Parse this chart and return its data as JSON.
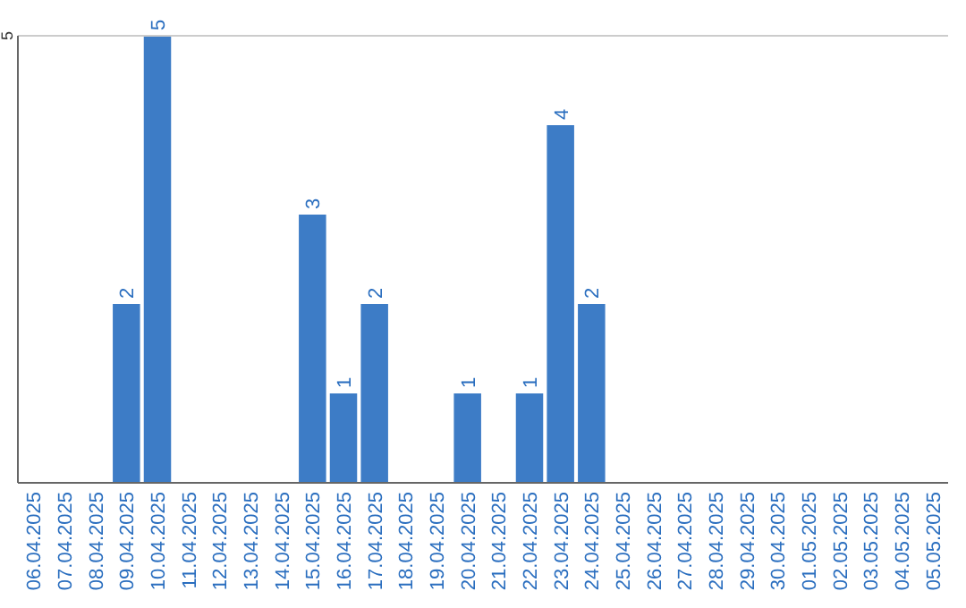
{
  "chart_data": {
    "type": "bar",
    "categories": [
      "06.04.2025",
      "07.04.2025",
      "08.04.2025",
      "09.04.2025",
      "10.04.2025",
      "11.04.2025",
      "12.04.2025",
      "13.04.2025",
      "14.04.2025",
      "15.04.2025",
      "16.04.2025",
      "17.04.2025",
      "18.04.2025",
      "19.04.2025",
      "20.04.2025",
      "21.04.2025",
      "22.04.2025",
      "23.04.2025",
      "24.04.2025",
      "25.04.2025",
      "26.04.2025",
      "27.04.2025",
      "28.04.2025",
      "29.04.2025",
      "30.04.2025",
      "01.05.2025",
      "02.05.2025",
      "03.05.2025",
      "04.05.2025",
      "05.05.2025"
    ],
    "values": [
      0,
      0,
      0,
      2,
      5,
      0,
      0,
      0,
      0,
      3,
      1,
      2,
      0,
      0,
      1,
      0,
      1,
      4,
      2,
      0,
      0,
      0,
      0,
      0,
      0,
      0,
      0,
      0,
      0,
      0
    ],
    "value_labels": [
      null,
      null,
      null,
      "2",
      "5",
      null,
      null,
      null,
      null,
      "3",
      "1",
      "2",
      null,
      null,
      "1",
      null,
      "1",
      "4",
      "2",
      null,
      null,
      null,
      null,
      null,
      null,
      null,
      null,
      null,
      null,
      null
    ],
    "color": "#3d7cc6",
    "ylim": [
      0,
      5
    ],
    "yticks": [
      5
    ]
  }
}
